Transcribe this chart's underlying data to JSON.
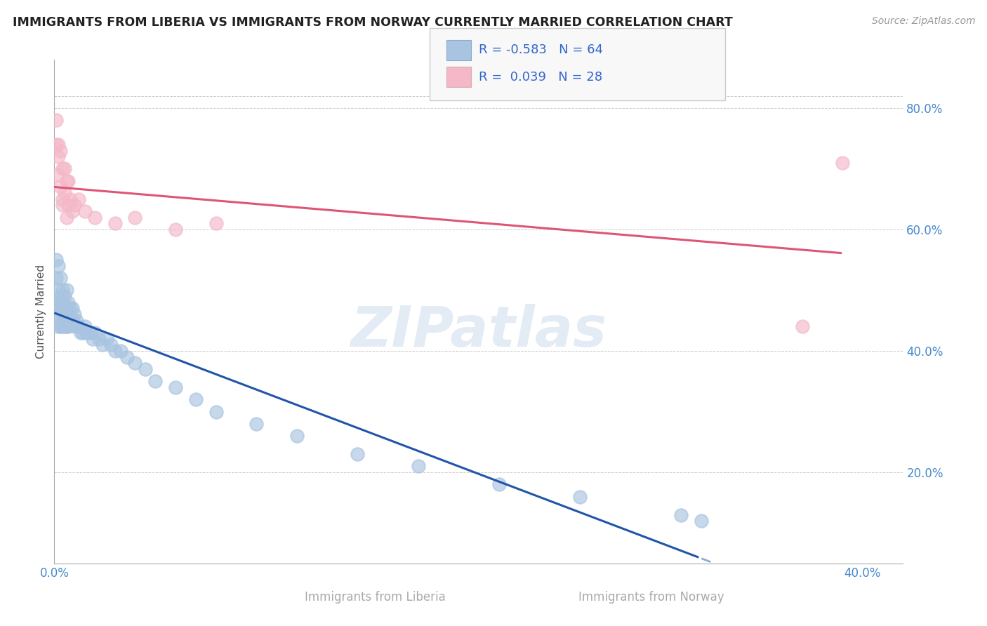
{
  "title": "IMMIGRANTS FROM LIBERIA VS IMMIGRANTS FROM NORWAY CURRENTLY MARRIED CORRELATION CHART",
  "source_text": "Source: ZipAtlas.com",
  "ylabel": "Currently Married",
  "xlim": [
    0.0,
    0.42
  ],
  "ylim": [
    0.05,
    0.88
  ],
  "xtick_vals": [
    0.0,
    0.1,
    0.2,
    0.3,
    0.4
  ],
  "xtick_labels": [
    "0.0%",
    "",
    "",
    "",
    "40.0%"
  ],
  "ytick_vals": [
    0.2,
    0.4,
    0.6,
    0.8
  ],
  "ytick_labels": [
    "20.0%",
    "40.0%",
    "60.0%",
    "80.0%"
  ],
  "liberia_R": -0.583,
  "liberia_N": 64,
  "norway_R": 0.039,
  "norway_N": 28,
  "color_liberia": "#a8c4e0",
  "color_liberia_line": "#2255aa",
  "color_norway": "#f4b8c8",
  "color_norway_line": "#dd5577",
  "background_color": "#ffffff",
  "grid_color": "#cccccc",
  "watermark": "ZIPatlas",
  "xlabel_liberia": "Immigrants from Liberia",
  "xlabel_norway": "Immigrants from Norway",
  "liberia_x": [
    0.001,
    0.001,
    0.001,
    0.002,
    0.002,
    0.002,
    0.002,
    0.002,
    0.003,
    0.003,
    0.003,
    0.003,
    0.003,
    0.004,
    0.004,
    0.004,
    0.004,
    0.005,
    0.005,
    0.005,
    0.005,
    0.006,
    0.006,
    0.006,
    0.007,
    0.007,
    0.007,
    0.008,
    0.008,
    0.009,
    0.009,
    0.01,
    0.01,
    0.011,
    0.012,
    0.013,
    0.014,
    0.015,
    0.016,
    0.017,
    0.018,
    0.019,
    0.02,
    0.022,
    0.024,
    0.026,
    0.028,
    0.03,
    0.033,
    0.036,
    0.04,
    0.045,
    0.05,
    0.06,
    0.07,
    0.08,
    0.1,
    0.12,
    0.15,
    0.18,
    0.22,
    0.26,
    0.31,
    0.32
  ],
  "liberia_y": [
    0.55,
    0.52,
    0.48,
    0.54,
    0.5,
    0.48,
    0.46,
    0.44,
    0.52,
    0.49,
    0.47,
    0.46,
    0.44,
    0.5,
    0.48,
    0.46,
    0.44,
    0.49,
    0.47,
    0.46,
    0.44,
    0.5,
    0.47,
    0.44,
    0.48,
    0.46,
    0.44,
    0.47,
    0.45,
    0.47,
    0.45,
    0.46,
    0.44,
    0.45,
    0.44,
    0.43,
    0.43,
    0.44,
    0.43,
    0.43,
    0.43,
    0.42,
    0.43,
    0.42,
    0.41,
    0.42,
    0.41,
    0.4,
    0.4,
    0.39,
    0.38,
    0.37,
    0.35,
    0.34,
    0.32,
    0.3,
    0.28,
    0.26,
    0.23,
    0.21,
    0.18,
    0.16,
    0.13,
    0.12
  ],
  "norway_x": [
    0.001,
    0.001,
    0.002,
    0.002,
    0.002,
    0.003,
    0.003,
    0.004,
    0.004,
    0.004,
    0.005,
    0.005,
    0.006,
    0.006,
    0.007,
    0.007,
    0.008,
    0.009,
    0.01,
    0.012,
    0.015,
    0.02,
    0.03,
    0.04,
    0.06,
    0.08,
    0.37,
    0.39
  ],
  "norway_y": [
    0.78,
    0.74,
    0.72,
    0.69,
    0.74,
    0.67,
    0.73,
    0.65,
    0.7,
    0.64,
    0.66,
    0.7,
    0.68,
    0.62,
    0.64,
    0.68,
    0.65,
    0.63,
    0.64,
    0.65,
    0.63,
    0.62,
    0.61,
    0.62,
    0.6,
    0.61,
    0.44,
    0.71
  ]
}
